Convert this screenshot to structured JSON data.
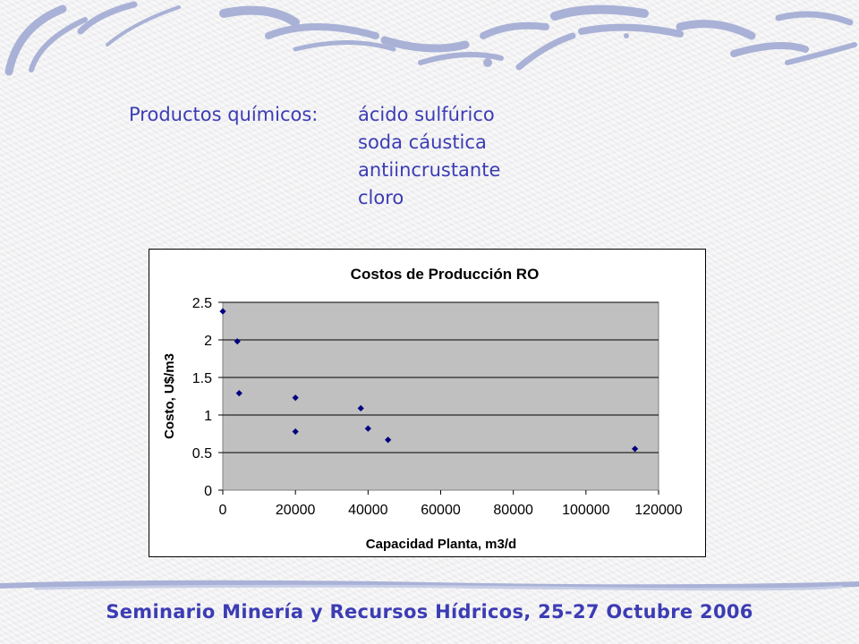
{
  "chemicals": {
    "label": "Productos químicos:",
    "items": [
      "ácido sulfúrico",
      "soda cáustica",
      "antiincrustante",
      "cloro"
    ]
  },
  "chart_data": {
    "type": "scatter",
    "title": "Costos de Producción RO",
    "xlabel": "Capacidad Planta, m3/d",
    "ylabel": "Costo, U$/m3",
    "xlim": [
      0,
      120000
    ],
    "ylim": [
      0,
      2.5
    ],
    "xticks": [
      "0",
      "20000",
      "40000",
      "60000",
      "80000",
      "100000",
      "120000"
    ],
    "yticks": [
      "0",
      "0.5",
      "1",
      "1.5",
      "2",
      "2.5"
    ],
    "grid": "horizontal",
    "plot_background": "#c0c0c0",
    "marker_color": "#000080",
    "points": [
      {
        "x": 0,
        "y": 2.38
      },
      {
        "x": 4000,
        "y": 1.98
      },
      {
        "x": 4500,
        "y": 1.29
      },
      {
        "x": 20000,
        "y": 1.23
      },
      {
        "x": 20000,
        "y": 0.78
      },
      {
        "x": 38000,
        "y": 1.09
      },
      {
        "x": 40000,
        "y": 0.82
      },
      {
        "x": 45500,
        "y": 0.67
      },
      {
        "x": 113500,
        "y": 0.55
      }
    ]
  },
  "footer": {
    "text": "Seminario Minería y Recursos Hídricos, 25-27 Octubre 2006"
  },
  "colors": {
    "text_accent": "#3c3cb4",
    "swirl": "#a9b1d6"
  }
}
